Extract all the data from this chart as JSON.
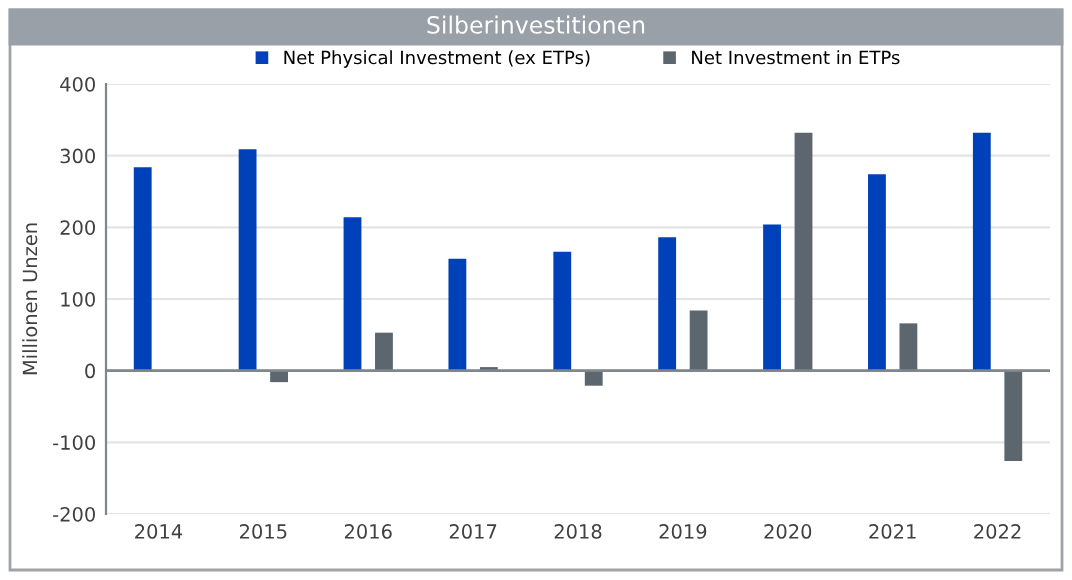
{
  "chart_data": {
    "type": "bar",
    "title": "Silberinvestitionen",
    "ylabel": "Millionen Unzen",
    "categories": [
      "2014",
      "2015",
      "2016",
      "2017",
      "2018",
      "2019",
      "2020",
      "2021",
      "2022"
    ],
    "series": [
      {
        "name": "Net Physical Investment (ex ETPs)",
        "color": "#0040b8",
        "values": [
          284,
          309,
          214,
          156,
          166,
          186,
          204,
          274,
          332
        ]
      },
      {
        "name": "Net Investment in ETPs",
        "color": "#5c666e",
        "values": [
          null,
          -16,
          53,
          5,
          -21,
          84,
          332,
          66,
          -126
        ]
      }
    ],
    "ylim": [
      -200,
      400
    ],
    "yticks": [
      -200,
      -100,
      0,
      100,
      200,
      300,
      400
    ],
    "grid": "y",
    "legend": "top"
  }
}
